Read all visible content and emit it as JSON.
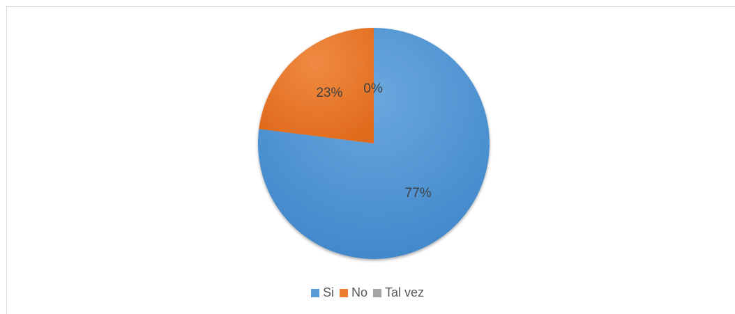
{
  "chart_data": {
    "type": "pie",
    "categories": [
      "Si",
      "No",
      "Tal vez"
    ],
    "values": [
      77,
      23,
      0
    ],
    "data_labels": [
      "77%",
      "23%",
      "0%"
    ],
    "colors": [
      "#5b9bd5",
      "#ed7d31",
      "#a5a5a5"
    ],
    "title": "",
    "legend_position": "bottom"
  }
}
